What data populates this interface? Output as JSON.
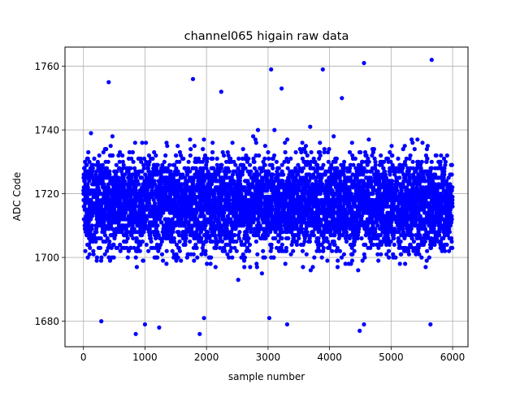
{
  "chart_data": {
    "type": "scatter",
    "title": "channel065 higain raw data",
    "xlabel": "sample number",
    "ylabel": "ADC Code",
    "xlim": [
      -300,
      6250
    ],
    "ylim": [
      1672,
      1766
    ],
    "xticks": [
      0,
      1000,
      2000,
      3000,
      4000,
      5000,
      6000
    ],
    "yticks": [
      1680,
      1700,
      1720,
      1740,
      1760
    ],
    "xtick_labels": [
      "0",
      "1000",
      "2000",
      "3000",
      "4000",
      "5000",
      "6000"
    ],
    "ytick_labels": [
      "1680",
      "1700",
      "1720",
      "1740",
      "1760"
    ],
    "grid": true,
    "marker_color": "#0000ff",
    "series": [
      {
        "sample_count": 6000,
        "x_range": [
          0,
          5999
        ],
        "baseline": 1717,
        "outliers": [
          {
            "x": 410,
            "y": 1755
          },
          {
            "x": 1780,
            "y": 1756
          },
          {
            "x": 3050,
            "y": 1759
          },
          {
            "x": 3890,
            "y": 1759
          },
          {
            "x": 4560,
            "y": 1761
          },
          {
            "x": 5660,
            "y": 1762
          },
          {
            "x": 2240,
            "y": 1752
          },
          {
            "x": 3220,
            "y": 1753
          },
          {
            "x": 4200,
            "y": 1750
          },
          {
            "x": 290,
            "y": 1680
          },
          {
            "x": 1000,
            "y": 1679
          },
          {
            "x": 1230,
            "y": 1678
          },
          {
            "x": 1960,
            "y": 1681
          },
          {
            "x": 3020,
            "y": 1681
          },
          {
            "x": 3310,
            "y": 1679
          },
          {
            "x": 4490,
            "y": 1677
          },
          {
            "x": 4560,
            "y": 1679
          },
          {
            "x": 5640,
            "y": 1679
          },
          {
            "x": 850,
            "y": 1676
          },
          {
            "x": 1890,
            "y": 1676
          }
        ]
      }
    ]
  }
}
